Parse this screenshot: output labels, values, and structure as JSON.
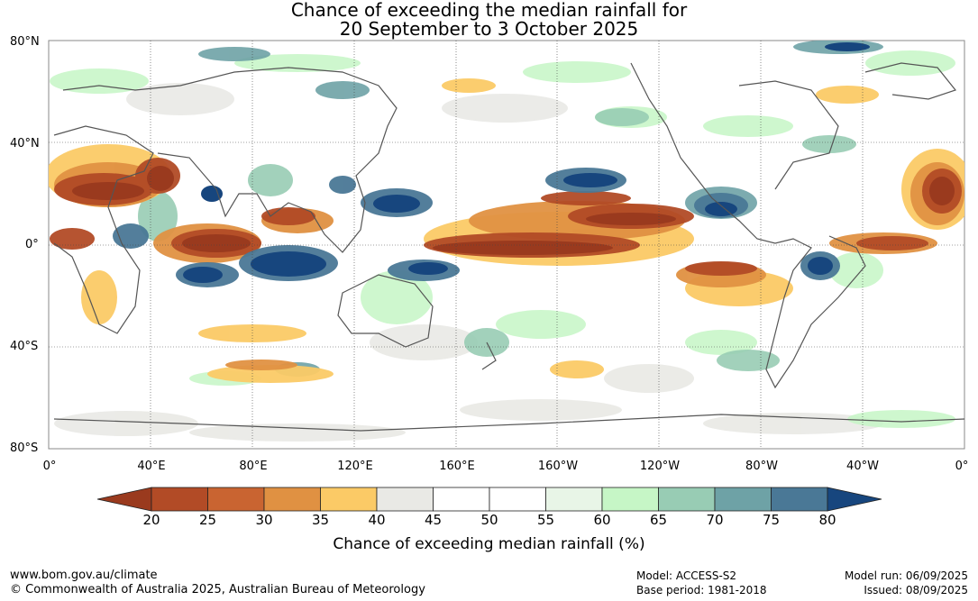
{
  "title": {
    "line1": "Chance of exceeding the median rainfall for",
    "line2": "20 September to 3 October 2025"
  },
  "lat_labels": [
    "80°N",
    "40°N",
    "0°",
    "40°S",
    "80°S"
  ],
  "lon_labels": [
    "0°",
    "40°E",
    "80°E",
    "120°E",
    "160°E",
    "160°W",
    "120°W",
    "80°W",
    "40°W",
    "0°"
  ],
  "colorbar": {
    "ticks": [
      "20",
      "25",
      "30",
      "35",
      "40",
      "45",
      "50",
      "55",
      "60",
      "65",
      "70",
      "75",
      "80"
    ],
    "colors": [
      "#9a3a1e",
      "#b24b26",
      "#c96431",
      "#e09142",
      "#fbca66",
      "#e9e9e5",
      "#ffffff",
      "#ffffff",
      "#e8f5e7",
      "#c6f6c6",
      "#98ccb4",
      "#6ea2a6",
      "#4a7896",
      "#17467e"
    ],
    "title": "Chance of exceeding median rainfall (%)"
  },
  "footer": {
    "website": "www.bom.gov.au/climate",
    "copyright": "© Commonwealth of Australia 2025, Australian Bureau of Meteorology",
    "model": "Model: ACCESS-S2",
    "base_period": "Base period: 1981-2018",
    "model_run": "Model run: 06/09/2025",
    "issued": "Issued: 08/09/2025"
  }
}
